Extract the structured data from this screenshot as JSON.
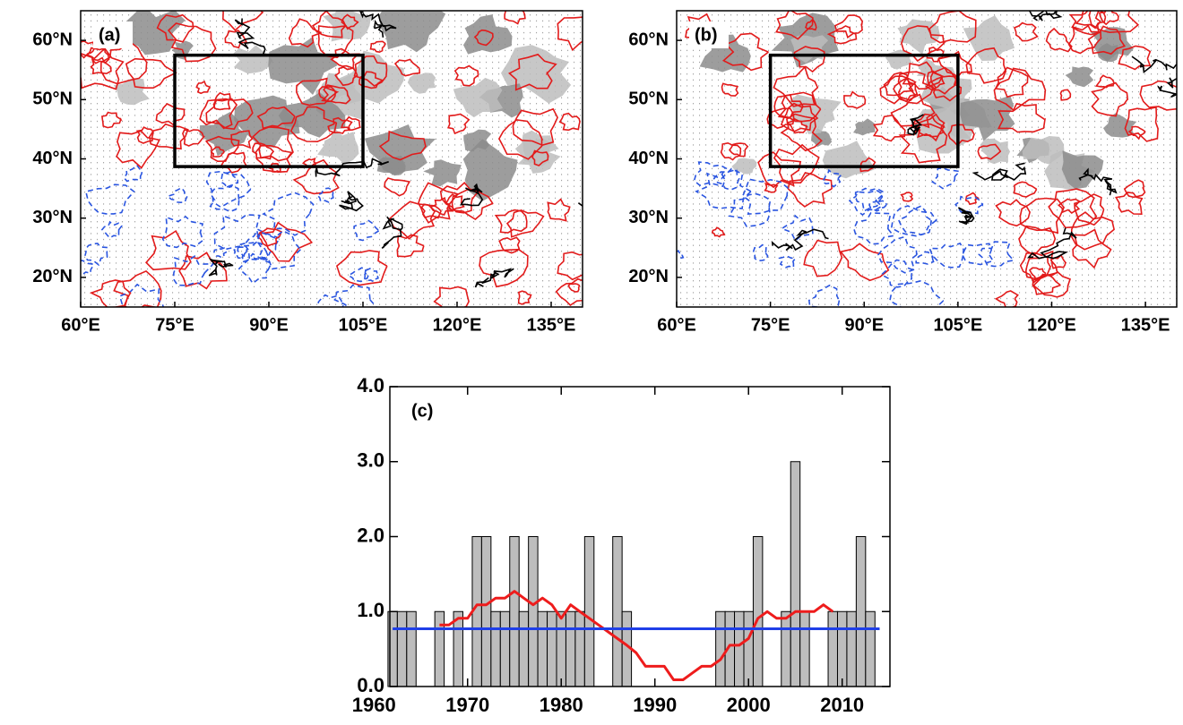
{
  "chart_data": [
    {
      "type": "map",
      "panel_label": "(a)",
      "xlim": [
        60,
        140
      ],
      "ylim": [
        15,
        65
      ],
      "xticks": [
        {
          "value": 60,
          "label": "60°E"
        },
        {
          "value": 75,
          "label": "75°E"
        },
        {
          "value": 90,
          "label": "90°E"
        },
        {
          "value": 105,
          "label": "105°E"
        },
        {
          "value": 120,
          "label": "120°E"
        },
        {
          "value": 135,
          "label": "135°E"
        }
      ],
      "yticks": [
        {
          "value": 20,
          "label": "20°N"
        },
        {
          "value": 30,
          "label": "30°N"
        },
        {
          "value": 40,
          "label": "40°N"
        },
        {
          "value": 50,
          "label": "50°N"
        },
        {
          "value": 60,
          "label": "60°N"
        }
      ],
      "box": {
        "lon": [
          75,
          105
        ],
        "lat": [
          38.7,
          57.5
        ]
      }
    },
    {
      "type": "map",
      "panel_label": "(b)",
      "xlim": [
        60,
        140
      ],
      "ylim": [
        15,
        65
      ],
      "xticks": [
        {
          "value": 60,
          "label": "60°E"
        },
        {
          "value": 75,
          "label": "75°E"
        },
        {
          "value": 90,
          "label": "90°E"
        },
        {
          "value": 105,
          "label": "105°E"
        },
        {
          "value": 120,
          "label": "120°E"
        },
        {
          "value": 135,
          "label": "135°E"
        }
      ],
      "yticks": [
        {
          "value": 20,
          "label": "20°N"
        },
        {
          "value": 30,
          "label": "30°N"
        },
        {
          "value": 40,
          "label": "40°N"
        },
        {
          "value": 50,
          "label": "50°N"
        },
        {
          "value": 60,
          "label": "60°N"
        }
      ],
      "box": {
        "lon": [
          75,
          105
        ],
        "lat": [
          38.7,
          57.5
        ]
      }
    },
    {
      "type": "bar",
      "panel_label": "(c)",
      "xlim": [
        1961.7,
        2015.1
      ],
      "ylim": [
        0,
        4
      ],
      "xticks": [
        1960,
        1970,
        1980,
        1990,
        2000,
        2010
      ],
      "yticks": [
        {
          "value": 0,
          "label": "0.0"
        },
        {
          "value": 1,
          "label": "1.0"
        },
        {
          "value": 2,
          "label": "2.0"
        },
        {
          "value": 3,
          "label": "3.0"
        },
        {
          "value": 4,
          "label": "4.0"
        }
      ],
      "x": [
        1962,
        1963,
        1964,
        1965,
        1966,
        1967,
        1968,
        1969,
        1970,
        1971,
        1972,
        1973,
        1974,
        1975,
        1976,
        1977,
        1978,
        1979,
        1980,
        1981,
        1982,
        1983,
        1984,
        1985,
        1986,
        1987,
        1988,
        1989,
        1990,
        1991,
        1992,
        1993,
        1994,
        1995,
        1996,
        1997,
        1998,
        1999,
        2000,
        2001,
        2002,
        2003,
        2004,
        2005,
        2006,
        2007,
        2008,
        2009,
        2010,
        2011,
        2012,
        2013,
        2014
      ],
      "series": [
        {
          "kind": "bar",
          "color": "#bdbdbd",
          "values": [
            1,
            1,
            1,
            0,
            0,
            1,
            0,
            1,
            0,
            2,
            2,
            1,
            1,
            2,
            1,
            2,
            1,
            1,
            1,
            1,
            1,
            2,
            0,
            0,
            2,
            1,
            0,
            0,
            0,
            0,
            0,
            0,
            0,
            0,
            0,
            1,
            1,
            1,
            1,
            2,
            0,
            0,
            1,
            3,
            1,
            0,
            0,
            1,
            1,
            1,
            2,
            1,
            0
          ]
        },
        {
          "kind": "line",
          "color": "#ee1c1c",
          "values": [
            null,
            null,
            null,
            null,
            null,
            0.82,
            0.82,
            0.91,
            0.91,
            1.09,
            1.09,
            1.18,
            1.18,
            1.27,
            1.18,
            1.09,
            1.18,
            1.09,
            0.91,
            1.09,
            1.0,
            0.91,
            0.82,
            0.73,
            0.64,
            0.55,
            0.45,
            0.27,
            0.27,
            0.27,
            0.09,
            0.09,
            0.18,
            0.27,
            0.27,
            0.36,
            0.55,
            0.55,
            0.64,
            0.91,
            1.0,
            0.91,
            0.91,
            1.0,
            1.0,
            1.0,
            1.09,
            1.0,
            null,
            null,
            null,
            null,
            null
          ]
        },
        {
          "kind": "line",
          "color": "#1f3fe8",
          "values": [
            0.77,
            0.77,
            0.77,
            0.77,
            0.77,
            0.77,
            0.77,
            0.77,
            0.77,
            0.77,
            0.77,
            0.77,
            0.77,
            0.77,
            0.77,
            0.77,
            0.77,
            0.77,
            0.77,
            0.77,
            0.77,
            0.77,
            0.77,
            0.77,
            0.77,
            0.77,
            0.77,
            0.77,
            0.77,
            0.77,
            0.77,
            0.77,
            0.77,
            0.77,
            0.77,
            0.77,
            0.77,
            0.77,
            0.77,
            0.77,
            0.77,
            0.77,
            0.77,
            0.77,
            0.77,
            0.77,
            0.77,
            0.77,
            0.77,
            0.77,
            0.77,
            0.77,
            0.77
          ]
        }
      ]
    }
  ]
}
